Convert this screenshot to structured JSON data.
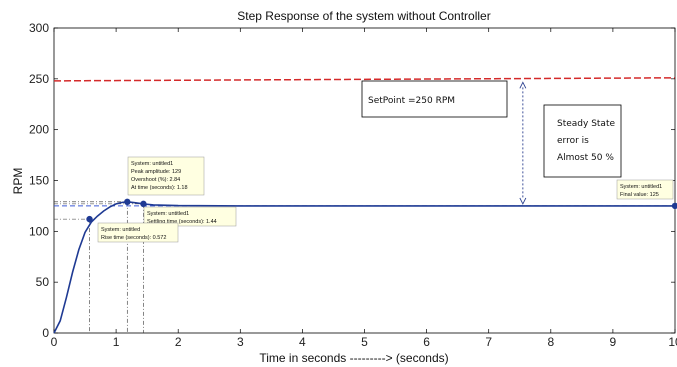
{
  "chart_data": {
    "type": "line",
    "title": "Step Response of the system without Controller",
    "xlabel": "Time in seconds ---------> (seconds)",
    "ylabel": "RPM",
    "xlim": [
      0,
      10
    ],
    "ylim": [
      0,
      300
    ],
    "xticks": [
      "0",
      "1",
      "2",
      "3",
      "4",
      "5",
      "6",
      "7",
      "8",
      "9",
      "10"
    ],
    "yticks": [
      "0",
      "50",
      "100",
      "150",
      "200",
      "250",
      "300"
    ],
    "grid": false,
    "colors": {
      "response": "#1f3a93",
      "setpoint": "#d42a2a",
      "final_line": "#3d5bd8"
    },
    "series": [
      {
        "x": [
          0,
          0.1,
          0.2,
          0.3,
          0.4,
          0.5,
          0.6,
          0.7,
          0.8,
          0.9,
          1.0,
          1.1,
          1.18,
          1.3,
          1.44,
          1.6,
          2.0,
          3.0,
          5.0,
          10.0
        ],
        "y": [
          0,
          12,
          35,
          60,
          82,
          99,
          109,
          115,
          120,
          124,
          127,
          128.5,
          129,
          128.2,
          127,
          126,
          125.3,
          125,
          125,
          125
        ]
      }
    ],
    "setpoint_line": {
      "x": [
        0,
        10
      ],
      "y": [
        248,
        251
      ]
    },
    "final_line": {
      "y": 125
    },
    "markers": [
      {
        "id": "rise",
        "x": 0.572,
        "y": 112
      },
      {
        "id": "peak",
        "x": 1.18,
        "y": 129
      },
      {
        "id": "settle",
        "x": 1.44,
        "y": 127
      },
      {
        "id": "final",
        "x": 10,
        "y": 125
      }
    ],
    "datatips": [
      {
        "id": "peak",
        "lines": [
          "System: untitled1",
          "Peak amplitude: 129",
          "Overshoot (%): 2.84",
          "At time (seconds): 1.18"
        ]
      },
      {
        "id": "settle",
        "lines": [
          "System: untitled1",
          "Settling time (seconds): 1.44"
        ]
      },
      {
        "id": "rise",
        "lines": [
          "System: untitled",
          "Rise time (seconds): 0.572"
        ]
      },
      {
        "id": "final",
        "lines": [
          "System: untitled1",
          "Final value: 125"
        ]
      }
    ],
    "annotations": {
      "setpoint": "SetPoint =250 RPM",
      "error": [
        "Steady State",
        "error is",
        "Almost 50 %"
      ]
    }
  }
}
